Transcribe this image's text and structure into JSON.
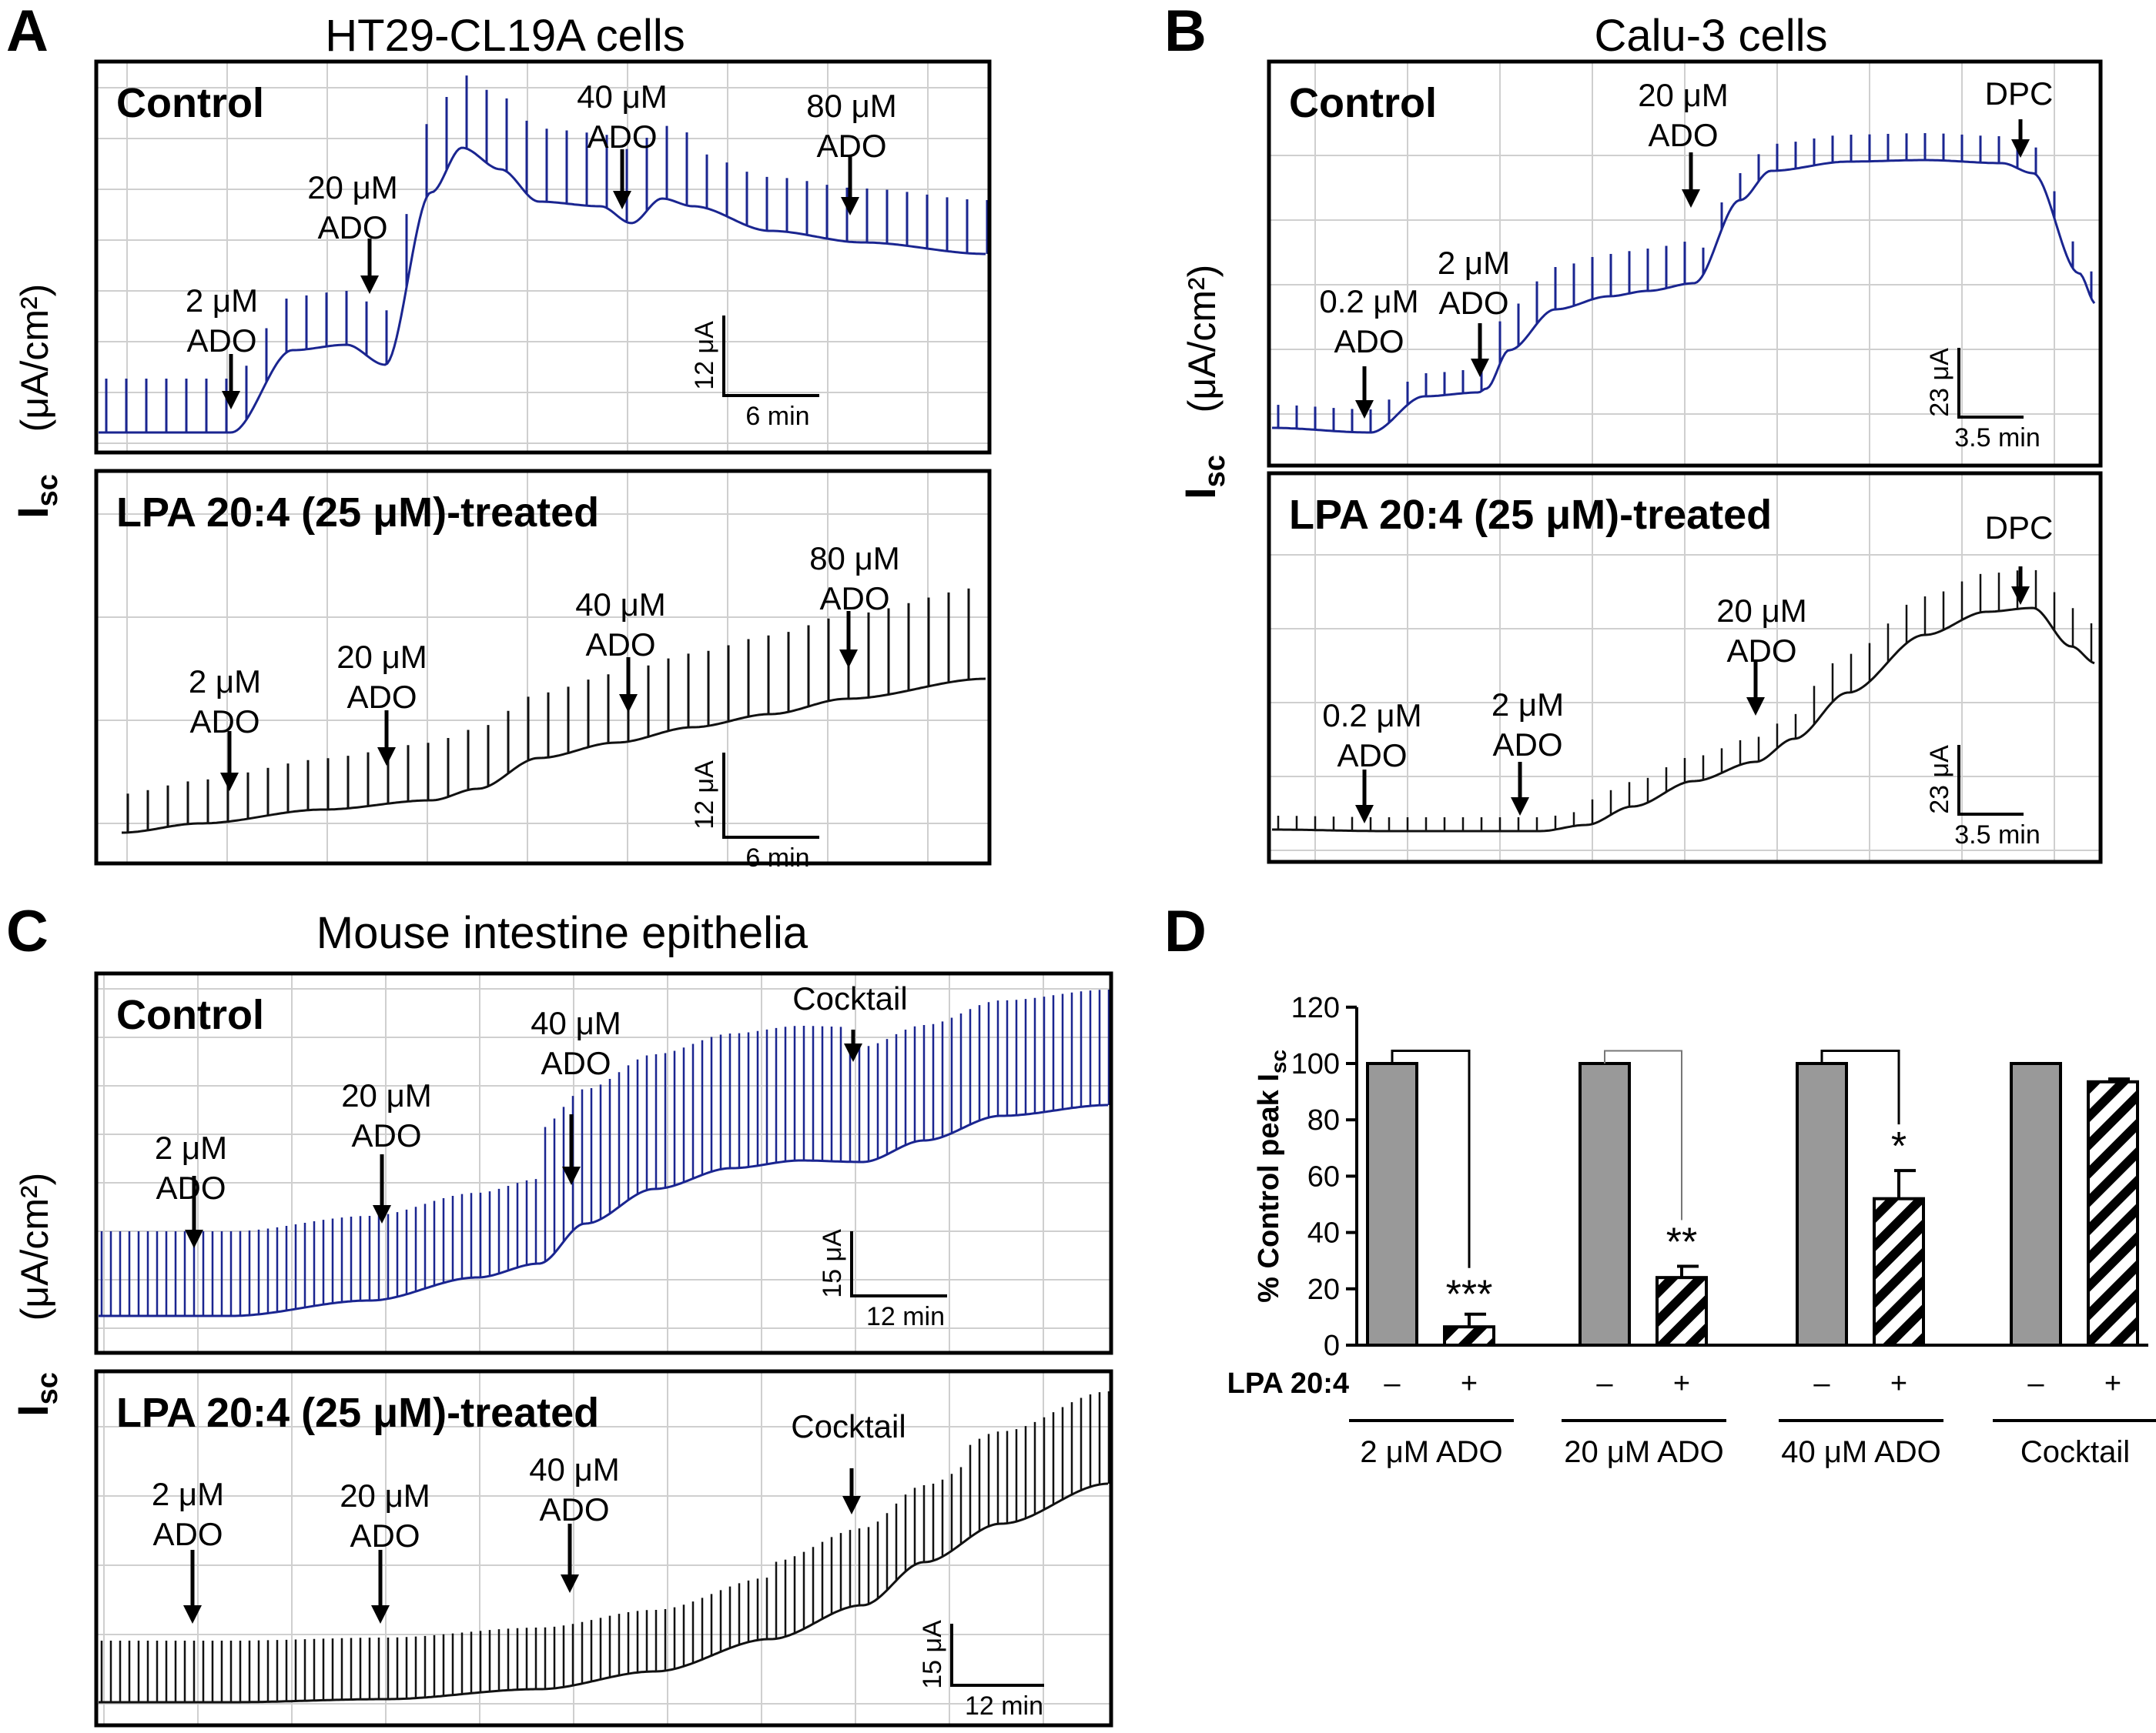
{
  "colors": {
    "control": "#1a2590",
    "treated": "#111111",
    "grid": "#cfcfcf",
    "bar_control": "#999999"
  },
  "panels": {
    "A": {
      "letter": "A",
      "title": "HT29-CL19A cells",
      "ylabel": "(μA/cm²)",
      "top": {
        "label": "Control",
        "annotations": [
          {
            "l1": "2 μM",
            "l2": "ADO"
          },
          {
            "l1": "20 μM",
            "l2": "ADO"
          },
          {
            "l1": "40 μM",
            "l2": "ADO"
          },
          {
            "l1": "80 μM",
            "l2": "ADO"
          }
        ],
        "scale": {
          "v": "12 μA",
          "h": "6 min"
        }
      },
      "bottom": {
        "label": "LPA 20:4 (25 μM)-treated",
        "annotations": [
          {
            "l1": "2 μM",
            "l2": "ADO"
          },
          {
            "l1": "20 μM",
            "l2": "ADO"
          },
          {
            "l1": "40 μM",
            "l2": "ADO"
          },
          {
            "l1": "80 μM",
            "l2": "ADO"
          }
        ],
        "scale": {
          "v": "12 μA",
          "h": "6 min"
        }
      }
    },
    "B": {
      "letter": "B",
      "title": "Calu-3 cells",
      "ylabel": "(μA/cm²)",
      "top": {
        "label": "Control",
        "annotations": [
          {
            "l1": "0.2 μM",
            "l2": "ADO"
          },
          {
            "l1": "2 μM",
            "l2": "ADO"
          },
          {
            "l1": "20 μM",
            "l2": "ADO"
          },
          {
            "l1": "DPC",
            "l2": ""
          }
        ],
        "scale": {
          "v": "23 μA",
          "h": "3.5 min"
        }
      },
      "bottom": {
        "label": "LPA 20:4 (25 μM)-treated",
        "annotations": [
          {
            "l1": "0.2 μM",
            "l2": "ADO"
          },
          {
            "l1": "2 μM",
            "l2": "ADO"
          },
          {
            "l1": "20 μM",
            "l2": "ADO"
          },
          {
            "l1": "DPC",
            "l2": ""
          }
        ],
        "scale": {
          "v": "23 μA",
          "h": "3.5 min"
        }
      }
    },
    "C": {
      "letter": "C",
      "title": "Mouse intestine epithelia",
      "ylabel": "(μA/cm²)",
      "top": {
        "label": "Control",
        "annotations": [
          {
            "l1": "2 μM",
            "l2": "ADO"
          },
          {
            "l1": "20 μM",
            "l2": "ADO"
          },
          {
            "l1": "40 μM",
            "l2": "ADO"
          },
          {
            "l1": "Cocktail",
            "l2": ""
          }
        ],
        "scale": {
          "v": "15 μA",
          "h": "12 min"
        }
      },
      "bottom": {
        "label": "LPA 20:4 (25 μM)-treated",
        "annotations": [
          {
            "l1": "2 μM",
            "l2": "ADO"
          },
          {
            "l1": "20 μM",
            "l2": "ADO"
          },
          {
            "l1": "40 μM",
            "l2": "ADO"
          },
          {
            "l1": "Cocktail",
            "l2": ""
          }
        ],
        "scale": {
          "v": "15 μA",
          "h": "12 min"
        }
      }
    },
    "D": {
      "letter": "D"
    }
  },
  "chart_data": {
    "type": "bar",
    "ylabel": "% Control peak Isc",
    "ylim": [
      0,
      120
    ],
    "yticks": [
      0,
      20,
      40,
      60,
      80,
      100,
      120
    ],
    "xlabel": "LPA 20:4",
    "treatment_labels": [
      "–",
      "+"
    ],
    "categories": [
      "2 μM ADO",
      "20 μM ADO",
      "40 μM ADO",
      "Cocktail"
    ],
    "series": [
      {
        "values": [
          100,
          100,
          100,
          100
        ]
      },
      {
        "values": [
          6.5,
          24,
          52,
          93.5
        ],
        "errors": [
          4.5,
          4,
          10,
          1
        ]
      }
    ],
    "significance": [
      "***",
      "**",
      "*",
      ""
    ]
  }
}
